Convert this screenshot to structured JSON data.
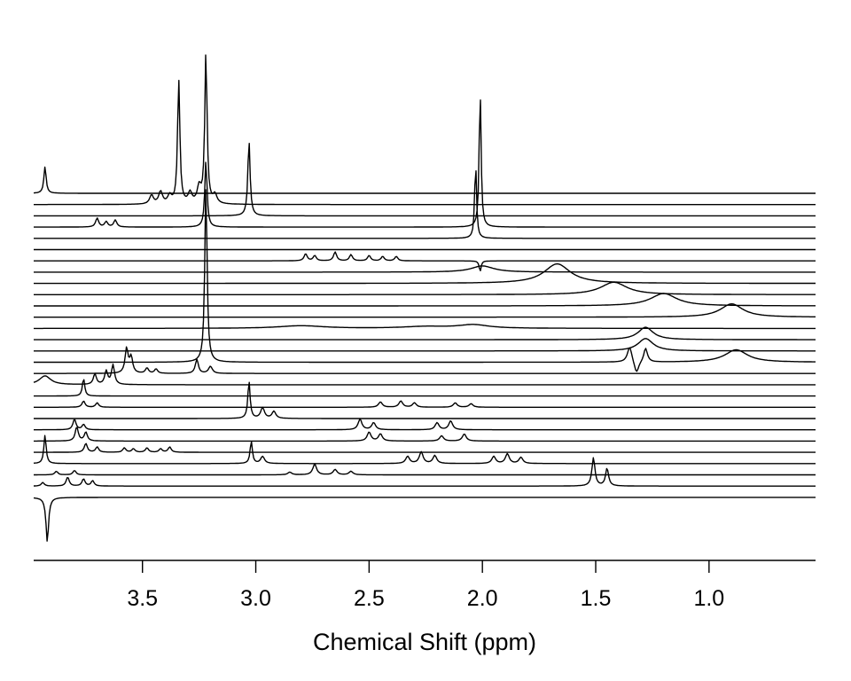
{
  "chart_data": {
    "type": "line",
    "title": "",
    "xlabel": "Chemical Shift (ppm)",
    "ylabel": "",
    "xlim": [
      3.98,
      0.53
    ],
    "x_reversed": true,
    "xticks": [
      3.5,
      3.0,
      2.5,
      2.0,
      1.5,
      1.0
    ],
    "xtick_labels": [
      "3.5",
      "3.0",
      "2.5",
      "2.0",
      "1.5",
      "1.0"
    ],
    "grid": false,
    "legend": "none",
    "stacked_offset": "vertical, one trace per row, top row first",
    "line_color": "#000000",
    "series": [
      {
        "peaks": [
          {
            "x": 3.93,
            "h": 30,
            "w": 0.006
          }
        ]
      },
      {
        "peaks": [
          {
            "x": 3.46,
            "h": 10,
            "w": 0.01
          },
          {
            "x": 3.42,
            "h": 14,
            "w": 0.01
          },
          {
            "x": 3.38,
            "h": 9,
            "w": 0.01
          },
          {
            "x": 3.34,
            "h": 140,
            "w": 0.006
          },
          {
            "x": 3.29,
            "h": 12,
            "w": 0.01
          },
          {
            "x": 3.25,
            "h": 18,
            "w": 0.01
          },
          {
            "x": 3.22,
            "h": 170,
            "w": 0.006
          },
          {
            "x": 3.18,
            "h": 10,
            "w": 0.01
          }
        ]
      },
      {
        "peaks": [
          {
            "x": 3.03,
            "h": 85,
            "w": 0.006
          }
        ]
      },
      {
        "peaks": [
          {
            "x": 3.7,
            "h": 10,
            "w": 0.008
          },
          {
            "x": 3.66,
            "h": 6,
            "w": 0.008
          },
          {
            "x": 3.62,
            "h": 8,
            "w": 0.008
          },
          {
            "x": 3.22,
            "h": 75,
            "w": 0.006
          },
          {
            "x": 2.01,
            "h": 155,
            "w": 0.005
          }
        ]
      },
      {
        "peaks": [
          {
            "x": 2.03,
            "h": 85,
            "w": 0.005
          }
        ]
      },
      {
        "peaks": []
      },
      {
        "peaks": [
          {
            "x": 2.78,
            "h": 8,
            "w": 0.008
          },
          {
            "x": 2.74,
            "h": 6,
            "w": 0.008
          },
          {
            "x": 2.65,
            "h": 10,
            "w": 0.008
          },
          {
            "x": 2.58,
            "h": 7,
            "w": 0.008
          },
          {
            "x": 2.5,
            "h": 6,
            "w": 0.008
          },
          {
            "x": 2.44,
            "h": 5,
            "w": 0.008
          },
          {
            "x": 2.38,
            "h": 5,
            "w": 0.008
          },
          {
            "x": 2.01,
            "h": -12,
            "w": 0.005
          }
        ]
      },
      {
        "peaks": [
          {
            "x": 2.0,
            "h": 7,
            "w": 0.06
          }
        ]
      },
      {
        "peaks": [
          {
            "x": 1.67,
            "h": 22,
            "w": 0.07
          }
        ]
      },
      {
        "peaks": [
          {
            "x": 1.42,
            "h": 14,
            "w": 0.07
          }
        ]
      },
      {
        "peaks": [
          {
            "x": 1.2,
            "h": 14,
            "w": 0.07
          }
        ]
      },
      {
        "peaks": [
          {
            "x": 0.9,
            "h": 15,
            "w": 0.06
          }
        ]
      },
      {
        "peaks": [
          {
            "x": 2.8,
            "h": 3,
            "w": 0.12
          },
          {
            "x": 2.25,
            "h": 2,
            "w": 0.12
          },
          {
            "x": 2.04,
            "h": 4,
            "w": 0.08
          }
        ]
      },
      {
        "peaks": [
          {
            "x": 1.28,
            "h": 14,
            "w": 0.04
          }
        ]
      },
      {
        "peaks": [
          {
            "x": 1.28,
            "h": 14,
            "w": 0.04
          }
        ]
      },
      {
        "peaks": [
          {
            "x": 3.22,
            "h": 200,
            "w": 0.006
          },
          {
            "x": 1.35,
            "h": 18,
            "w": 0.012
          },
          {
            "x": 1.32,
            "h": -14,
            "w": 0.012
          },
          {
            "x": 1.28,
            "h": 16,
            "w": 0.01
          },
          {
            "x": 0.88,
            "h": 14,
            "w": 0.06
          }
        ]
      },
      {
        "peaks": [
          {
            "x": 3.57,
            "h": 28,
            "w": 0.008
          },
          {
            "x": 3.55,
            "h": 18,
            "w": 0.008
          },
          {
            "x": 3.48,
            "h": 6,
            "w": 0.008
          },
          {
            "x": 3.44,
            "h": 5,
            "w": 0.008
          },
          {
            "x": 3.26,
            "h": 16,
            "w": 0.008
          },
          {
            "x": 3.2,
            "h": 8,
            "w": 0.01
          }
        ]
      },
      {
        "peaks": [
          {
            "x": 3.93,
            "h": 10,
            "w": 0.03
          },
          {
            "x": 3.71,
            "h": 12,
            "w": 0.008
          },
          {
            "x": 3.66,
            "h": 15,
            "w": 0.008
          },
          {
            "x": 3.63,
            "h": 22,
            "w": 0.008
          }
        ]
      },
      {
        "peaks": [
          {
            "x": 3.76,
            "h": 20,
            "w": 0.006
          }
        ]
      },
      {
        "peaks": [
          {
            "x": 3.76,
            "h": 7,
            "w": 0.008
          },
          {
            "x": 3.7,
            "h": 5,
            "w": 0.008
          },
          {
            "x": 2.45,
            "h": 6,
            "w": 0.01
          },
          {
            "x": 2.36,
            "h": 7,
            "w": 0.01
          },
          {
            "x": 2.3,
            "h": 5,
            "w": 0.01
          },
          {
            "x": 2.12,
            "h": 5,
            "w": 0.01
          },
          {
            "x": 2.05,
            "h": 4,
            "w": 0.01
          }
        ]
      },
      {
        "peaks": [
          {
            "x": 3.03,
            "h": 42,
            "w": 0.006
          },
          {
            "x": 2.97,
            "h": 12,
            "w": 0.01
          },
          {
            "x": 2.92,
            "h": 8,
            "w": 0.01
          }
        ]
      },
      {
        "peaks": [
          {
            "x": 3.8,
            "h": 12,
            "w": 0.008
          },
          {
            "x": 3.76,
            "h": 6,
            "w": 0.008
          },
          {
            "x": 2.54,
            "h": 12,
            "w": 0.01
          },
          {
            "x": 2.48,
            "h": 8,
            "w": 0.01
          },
          {
            "x": 2.2,
            "h": 8,
            "w": 0.01
          },
          {
            "x": 2.14,
            "h": 10,
            "w": 0.01
          }
        ]
      },
      {
        "peaks": [
          {
            "x": 3.79,
            "h": 16,
            "w": 0.008
          },
          {
            "x": 3.75,
            "h": 10,
            "w": 0.008
          },
          {
            "x": 2.5,
            "h": 10,
            "w": 0.01
          },
          {
            "x": 2.45,
            "h": 8,
            "w": 0.01
          },
          {
            "x": 2.18,
            "h": 6,
            "w": 0.01
          },
          {
            "x": 2.08,
            "h": 8,
            "w": 0.01
          }
        ]
      },
      {
        "peaks": [
          {
            "x": 3.75,
            "h": 10,
            "w": 0.008
          },
          {
            "x": 3.7,
            "h": 6,
            "w": 0.008
          },
          {
            "x": 3.58,
            "h": 5,
            "w": 0.008
          },
          {
            "x": 3.54,
            "h": 4,
            "w": 0.008
          },
          {
            "x": 3.48,
            "h": 5,
            "w": 0.008
          },
          {
            "x": 3.42,
            "h": 4,
            "w": 0.008
          },
          {
            "x": 3.38,
            "h": 6,
            "w": 0.008
          }
        ]
      },
      {
        "peaks": [
          {
            "x": 3.93,
            "h": 32,
            "w": 0.006
          },
          {
            "x": 3.02,
            "h": 25,
            "w": 0.006
          },
          {
            "x": 2.97,
            "h": 8,
            "w": 0.01
          },
          {
            "x": 2.33,
            "h": 8,
            "w": 0.01
          },
          {
            "x": 2.27,
            "h": 13,
            "w": 0.01
          },
          {
            "x": 2.21,
            "h": 9,
            "w": 0.01
          },
          {
            "x": 1.95,
            "h": 8,
            "w": 0.01
          },
          {
            "x": 1.89,
            "h": 11,
            "w": 0.01
          },
          {
            "x": 1.83,
            "h": 7,
            "w": 0.01
          }
        ]
      },
      {
        "peaks": [
          {
            "x": 3.88,
            "h": 4,
            "w": 0.008
          },
          {
            "x": 3.8,
            "h": 5,
            "w": 0.008
          },
          {
            "x": 2.85,
            "h": 3,
            "w": 0.01
          },
          {
            "x": 2.74,
            "h": 12,
            "w": 0.01
          },
          {
            "x": 2.65,
            "h": 6,
            "w": 0.01
          },
          {
            "x": 2.58,
            "h": 4,
            "w": 0.01
          }
        ]
      },
      {
        "peaks": [
          {
            "x": 3.94,
            "h": 4,
            "w": 0.008
          },
          {
            "x": 3.83,
            "h": 10,
            "w": 0.008
          },
          {
            "x": 3.76,
            "h": 8,
            "w": 0.008
          },
          {
            "x": 3.72,
            "h": 6,
            "w": 0.008
          },
          {
            "x": 1.51,
            "h": 32,
            "w": 0.008
          },
          {
            "x": 1.45,
            "h": 20,
            "w": 0.008
          }
        ]
      },
      {
        "peaks": [
          {
            "x": 3.92,
            "h": -50,
            "w": 0.007
          }
        ]
      }
    ]
  }
}
